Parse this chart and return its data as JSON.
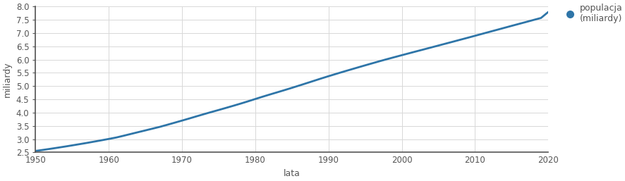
{
  "x": [
    1950,
    1951,
    1952,
    1953,
    1954,
    1955,
    1956,
    1957,
    1958,
    1959,
    1960,
    1961,
    1962,
    1963,
    1964,
    1965,
    1966,
    1967,
    1968,
    1969,
    1970,
    1971,
    1972,
    1973,
    1974,
    1975,
    1976,
    1977,
    1978,
    1979,
    1980,
    1981,
    1982,
    1983,
    1984,
    1985,
    1986,
    1987,
    1988,
    1989,
    1990,
    1991,
    1992,
    1993,
    1994,
    1995,
    1996,
    1997,
    1998,
    1999,
    2000,
    2001,
    2002,
    2003,
    2004,
    2005,
    2006,
    2007,
    2008,
    2009,
    2010,
    2011,
    2012,
    2013,
    2014,
    2015,
    2016,
    2017,
    2018,
    2019,
    2020
  ],
  "y": [
    2.556,
    2.594,
    2.635,
    2.677,
    2.72,
    2.765,
    2.811,
    2.858,
    2.907,
    2.957,
    3.008,
    3.061,
    3.127,
    3.195,
    3.263,
    3.33,
    3.398,
    3.466,
    3.543,
    3.621,
    3.7,
    3.78,
    3.862,
    3.943,
    4.022,
    4.099,
    4.178,
    4.258,
    4.34,
    4.425,
    4.513,
    4.6,
    4.684,
    4.766,
    4.849,
    4.934,
    5.021,
    5.109,
    5.198,
    5.287,
    5.373,
    5.457,
    5.54,
    5.621,
    5.702,
    5.782,
    5.861,
    5.94,
    6.016,
    6.09,
    6.164,
    6.237,
    6.31,
    6.382,
    6.455,
    6.528,
    6.601,
    6.674,
    6.748,
    6.821,
    6.896,
    6.971,
    7.046,
    7.12,
    7.195,
    7.27,
    7.344,
    7.418,
    7.493,
    7.567,
    7.795
  ],
  "line_color": "#2e75a8",
  "marker_color": "#2e75a8",
  "xlabel": "lata",
  "ylabel": "miliardy",
  "legend_label": "populacja\n(miliardy)",
  "xlim": [
    1950,
    2020
  ],
  "ylim": [
    2.5,
    8.0
  ],
  "yticks": [
    2.5,
    3.0,
    3.5,
    4.0,
    4.5,
    5.0,
    5.5,
    6.0,
    6.5,
    7.0,
    7.5,
    8.0
  ],
  "xticks": [
    1950,
    1960,
    1970,
    1980,
    1990,
    2000,
    2010,
    2020
  ],
  "grid_color": "#d8d8d8",
  "background_color": "#ffffff",
  "spine_color": "#555555",
  "tick_color": "#555555",
  "label_fontsize": 9,
  "tick_fontsize": 8.5
}
